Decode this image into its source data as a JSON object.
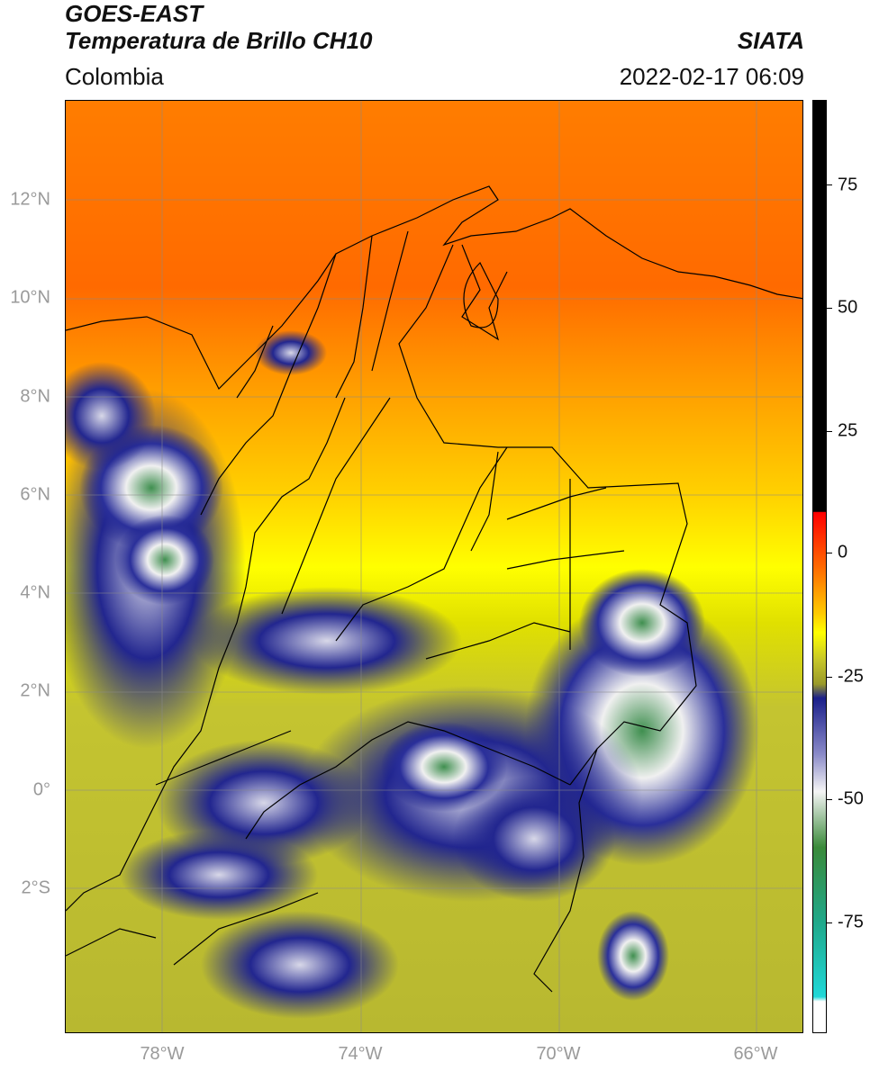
{
  "header": {
    "title_line1": "GOES-EAST",
    "title_line2": "Temperatura de Brillo CH10",
    "region": "Colombia",
    "brand": "SIATA",
    "timestamp": "2022-02-17 06:09"
  },
  "map": {
    "lat_labels": [
      "12°N",
      "10°N",
      "8°N",
      "6°N",
      "4°N",
      "2°N",
      "0°",
      "2°S"
    ],
    "lon_labels": [
      "78°W",
      "74°W",
      "70°W",
      "66°W"
    ],
    "grid": true
  },
  "colorbar": {
    "tick_labels": [
      "75",
      "50",
      "25",
      "0",
      "-25",
      "-50",
      "-75"
    ],
    "colors": {
      "warm": "#000000",
      "red": "#ff2a00",
      "orange": "#ff8a00",
      "yellow": "#ffff00",
      "olive": "#b7b52a",
      "navy": "#1a1f8a",
      "white": "#f5f5f5",
      "green": "#3a8a3a",
      "cyan": "#20d8d8"
    }
  }
}
